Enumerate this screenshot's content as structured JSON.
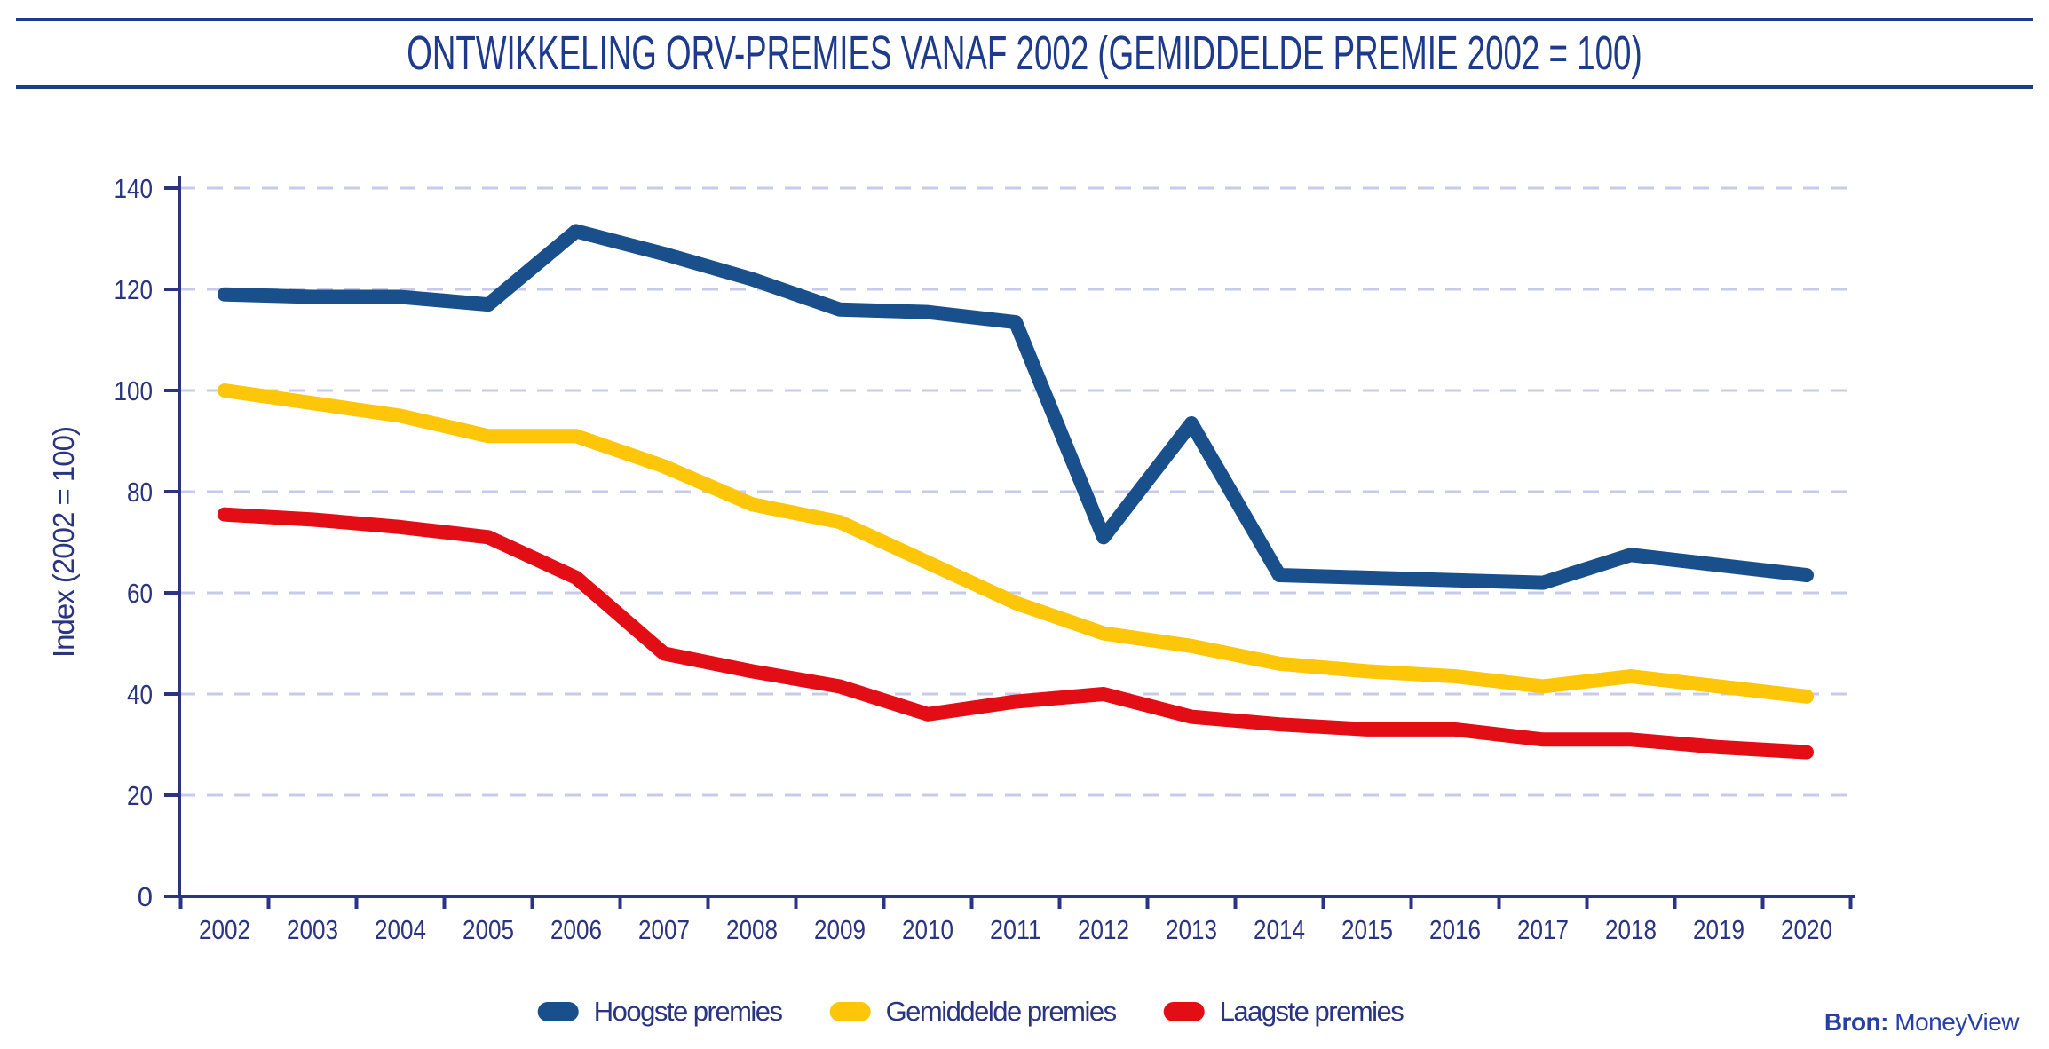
{
  "header": {
    "title": "ONTWIKKELING ORV-PREMIES VANAF 2002 (GEMIDDELDE PREMIE 2002 = 100)"
  },
  "source": {
    "label": "Bron:",
    "name": "MoneyView"
  },
  "colors": {
    "navy_text": "#2a3480",
    "title_navy": "#1d3a8c",
    "rule_navy": "#1d3a8c",
    "source_blue": "#2640a6",
    "axis": "#2a3480",
    "grid": "#c7cae8",
    "series_blue": "#19508c",
    "series_yellow": "#fdc609",
    "series_red": "#e30d16"
  },
  "chart_data": {
    "type": "line",
    "title": "ONTWIKKELING ORV-PREMIES VANAF 2002 (GEMIDDELDE PREMIE 2002 = 100)",
    "xlabel": "",
    "ylabel": "Index (2002 = 100)",
    "ylim": [
      0,
      140
    ],
    "yticks": [
      0,
      20,
      40,
      60,
      80,
      100,
      120,
      140
    ],
    "grid": "horizontal-dashed",
    "legend_position": "bottom",
    "categories": [
      "2002",
      "2003",
      "2004",
      "2005",
      "2006",
      "2007",
      "2008",
      "2009",
      "2010",
      "2011",
      "2012",
      "2013",
      "2014",
      "2015",
      "2016",
      "2017",
      "2018",
      "2019",
      "2020"
    ],
    "series": [
      {
        "name": "Hoogste premies",
        "color": "#19508c",
        "values": [
          119,
          118.5,
          118.5,
          117,
          131.5,
          127,
          122,
          116,
          115.5,
          113.5,
          71,
          93.5,
          63.5,
          63,
          62.5,
          62,
          67.5,
          65.5,
          63.5
        ]
      },
      {
        "name": "Gemiddelde premies",
        "color": "#fdc609",
        "values": [
          100,
          97.5,
          95,
          91,
          91,
          85,
          77.5,
          74,
          66,
          58,
          52,
          49.5,
          46,
          44.5,
          43.5,
          41.5,
          43.5,
          41.5,
          39.5
        ]
      },
      {
        "name": "Laagste premies",
        "color": "#e30d16",
        "values": [
          75.5,
          74.5,
          73,
          71,
          63,
          48,
          44.5,
          41.5,
          36,
          38.5,
          40,
          35.5,
          34,
          33,
          33,
          31,
          31,
          29.5,
          28.5
        ]
      }
    ]
  }
}
